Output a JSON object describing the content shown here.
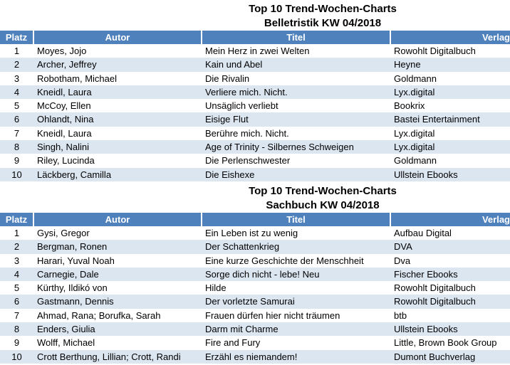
{
  "colors": {
    "header_bg": "#4f81bd",
    "band_bg": "#dce6f1",
    "header_text": "#ffffff",
    "body_text": "#000000"
  },
  "chart_data": [
    {
      "type": "table",
      "title": "Top 10 Trend-Wochen-Charts",
      "subtitle": "Belletristik KW 04/2018",
      "columns": [
        "Platz",
        "Autor",
        "Titel",
        "Verlag"
      ],
      "rows": [
        [
          "1",
          "Moyes, Jojo",
          "Mein Herz in zwei Welten",
          "Rowohlt Digitalbuch"
        ],
        [
          "2",
          "Archer, Jeffrey",
          "Kain und Abel",
          "Heyne"
        ],
        [
          "3",
          "Robotham, Michael",
          "Die Rivalin",
          "Goldmann"
        ],
        [
          "4",
          "Kneidl, Laura",
          "Verliere mich. Nicht.",
          "Lyx.digital"
        ],
        [
          "5",
          "McCoy, Ellen",
          "Unsäglich verliebt",
          "Bookrix"
        ],
        [
          "6",
          "Ohlandt, Nina",
          "Eisige Flut",
          "Bastei Entertainment"
        ],
        [
          "7",
          "Kneidl, Laura",
          "Berühre mich. Nicht.",
          "Lyx.digital"
        ],
        [
          "8",
          "Singh, Nalini",
          "Age of Trinity - Silbernes Schweigen",
          "Lyx.digital"
        ],
        [
          "9",
          "Riley, Lucinda",
          "Die Perlenschwester",
          "Goldmann"
        ],
        [
          "10",
          "Läckberg, Camilla",
          "Die Eishexe",
          "Ullstein Ebooks"
        ]
      ]
    },
    {
      "type": "table",
      "title": "Top 10 Trend-Wochen-Charts",
      "subtitle": "Sachbuch KW 04/2018",
      "columns": [
        "Platz",
        "Autor",
        "Titel",
        "Verlag"
      ],
      "rows": [
        [
          "1",
          "Gysi, Gregor",
          "Ein Leben ist zu wenig",
          "Aufbau Digital"
        ],
        [
          "2",
          "Bergman, Ronen",
          "Der Schattenkrieg",
          "DVA"
        ],
        [
          "3",
          "Harari, Yuval Noah",
          "Eine kurze Geschichte der Menschheit",
          "Dva"
        ],
        [
          "4",
          "Carnegie, Dale",
          "Sorge dich nicht - lebe! Neu",
          "Fischer Ebooks"
        ],
        [
          "5",
          "Kürthy, Ildikó von",
          "Hilde",
          "Rowohlt Digitalbuch"
        ],
        [
          "6",
          "Gastmann, Dennis",
          "Der vorletzte Samurai",
          "Rowohlt Digitalbuch"
        ],
        [
          "7",
          "Ahmad, Rana; Borufka, Sarah",
          "Frauen dürfen hier nicht träumen",
          "btb"
        ],
        [
          "8",
          "Enders, Giulia",
          "Darm mit Charme",
          "Ullstein Ebooks"
        ],
        [
          "9",
          "Wolff, Michael",
          "Fire and Fury",
          "Little, Brown Book Group"
        ],
        [
          "10",
          "Crott Berthung, Lillian; Crott, Randi",
          "Erzähl es niemandem!",
          "Dumont Buchverlag"
        ]
      ]
    }
  ]
}
